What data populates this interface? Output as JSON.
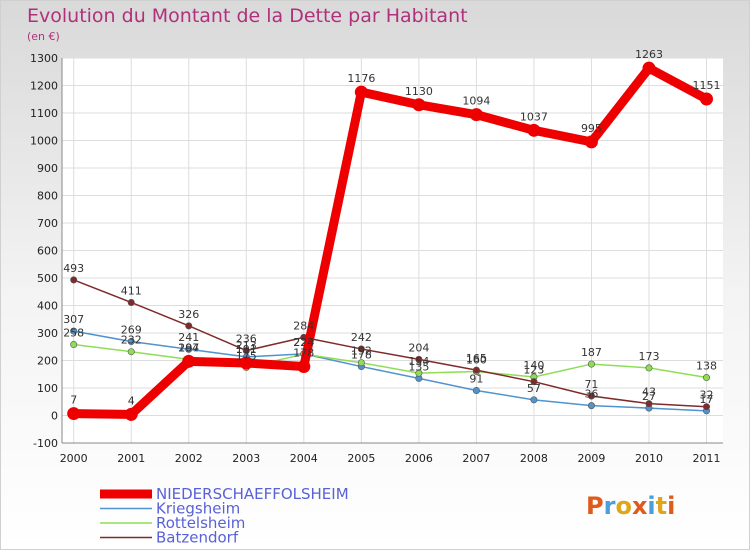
{
  "title": "Evolution du Montant de la Dette par Habitant",
  "subtitle": "(en €)",
  "brand": {
    "name": "Proxiti"
  },
  "chart_data": {
    "type": "line",
    "x": [
      "2000",
      "2001",
      "2002",
      "2003",
      "2004",
      "2005",
      "2006",
      "2007",
      "2008",
      "2009",
      "2010",
      "2011"
    ],
    "ylim": [
      -100,
      1300
    ],
    "yticks": [
      -100,
      0,
      100,
      200,
      300,
      400,
      500,
      600,
      700,
      800,
      900,
      1000,
      1100,
      1200,
      1300
    ],
    "grid": true,
    "legend_position": "bottom-left",
    "series": [
      {
        "name": "NIEDERSCHAEFFOLSHEIM",
        "color": "#ee0000",
        "values": [
          7,
          4,
          197,
          191,
          178,
          1176,
          1130,
          1094,
          1037,
          995,
          1263,
          1151
        ],
        "labels": [
          "7",
          "4",
          "197",
          "191",
          "178",
          "1176",
          "1130",
          "1094",
          "1037",
          "995",
          "1263",
          "1151"
        ]
      },
      {
        "name": "Kriegsheim",
        "color": "#4f93cf",
        "values": [
          307,
          269,
          241,
          213,
          224,
          178,
          135,
          91,
          57,
          36,
          27,
          17
        ],
        "labels": [
          "307",
          "269",
          "241",
          "213",
          "224",
          "178",
          "135",
          "91",
          "57",
          "36",
          "27",
          "17"
        ]
      },
      {
        "name": "Rottelsheim",
        "color": "#8fdd55",
        "values": [
          258,
          232,
          204,
          175,
          223,
          192,
          154,
          160,
          140,
          187,
          173,
          138
        ],
        "labels": [
          "258",
          "232",
          "204",
          "175",
          "223",
          "192",
          "154",
          "160",
          "140",
          "187",
          "173",
          "138"
        ]
      },
      {
        "name": "Batzendorf",
        "color": "#7f2b2b",
        "values": [
          493,
          411,
          326,
          236,
          284,
          242,
          204,
          165,
          123,
          71,
          43,
          32
        ],
        "labels": [
          "493",
          "411",
          "326",
          "236",
          "284",
          "242",
          "204",
          "165",
          "123",
          "71",
          "43",
          "32"
        ]
      }
    ]
  }
}
